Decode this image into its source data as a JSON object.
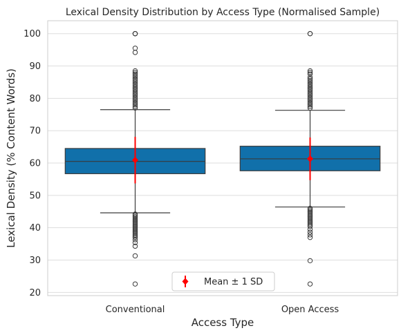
{
  "chart_data": {
    "type": "box",
    "title": "Lexical Density Distribution by Access Type (Normalised Sample)",
    "xlabel": "Access Type",
    "ylabel": "Lexical Density (% Content Words)",
    "ylim": [
      19,
      104
    ],
    "yticks": [
      20,
      30,
      40,
      50,
      60,
      70,
      80,
      90,
      100
    ],
    "categories": [
      "Conventional",
      "Open Access"
    ],
    "grid": "horizontal",
    "legend": {
      "placement": "bottom-center",
      "entries": [
        "Mean ± 1 SD"
      ]
    },
    "colors": {
      "box": "#1170aa",
      "mean": "#ff0000",
      "edge": "#3a3a3a",
      "grid": "#dddddd"
    },
    "boxes": [
      {
        "category": "Conventional",
        "q1": 56.7,
        "median": 60.5,
        "q3": 64.5,
        "whisker_low": 44.6,
        "whisker_high": 76.5,
        "mean": 60.9,
        "sd": 7.2,
        "outliers_high": [
          100,
          100,
          100,
          95.5,
          94.2,
          88.5,
          88,
          87.5,
          87,
          86.5,
          86,
          85.5,
          85,
          84.5,
          84,
          83.5,
          83,
          82.5,
          82,
          81.5,
          81,
          80.5,
          80,
          79.5,
          79,
          78.5,
          78,
          77.5,
          77
        ],
        "outliers_low": [
          44.2,
          43.8,
          43.4,
          43,
          42.6,
          42.2,
          41.8,
          41.4,
          41,
          40.6,
          40.2,
          39.8,
          39.4,
          39,
          38.6,
          38.2,
          37.8,
          37.4,
          37,
          36.3,
          35.4,
          34.3,
          31.3,
          22.6
        ]
      },
      {
        "category": "Open Access",
        "q1": 57.6,
        "median": 61.3,
        "q3": 65.2,
        "whisker_low": 46.4,
        "whisker_high": 76.3,
        "mean": 61.3,
        "sd": 6.6,
        "outliers_high": [
          100,
          100,
          88.5,
          88,
          87.5,
          86.5,
          86,
          85.5,
          85,
          84.5,
          84,
          83.5,
          83,
          82.5,
          82,
          81.5,
          81,
          80.5,
          80,
          79.5,
          79,
          78.5,
          78,
          77.5,
          77
        ],
        "outliers_low": [
          46,
          45.6,
          45.2,
          44.8,
          44.4,
          44,
          43.6,
          43.2,
          42.8,
          42.4,
          42,
          41.6,
          41.2,
          40.8,
          40.4,
          39.5,
          38.6,
          37.8,
          37,
          29.8,
          22.6
        ]
      }
    ]
  }
}
